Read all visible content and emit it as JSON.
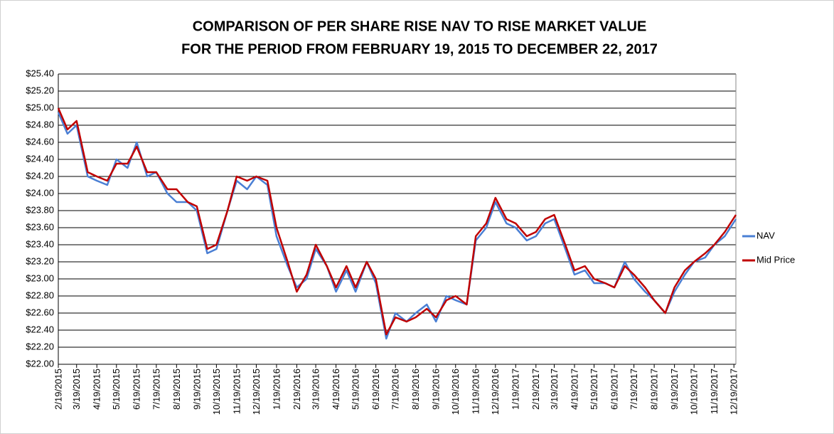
{
  "chart_data": {
    "type": "line",
    "title": [
      "COMPARISON OF PER SHARE RISE NAV TO RISE MARKET VALUE",
      "FOR THE PERIOD FROM FEBRUARY 19, 2015 TO DECEMBER 22, 2017"
    ],
    "x": [
      "2/19/2015",
      "3/5/2015",
      "3/19/2015",
      "4/5/2015",
      "4/19/2015",
      "5/5/2015",
      "5/19/2015",
      "6/5/2015",
      "6/19/2015",
      "7/5/2015",
      "7/19/2015",
      "8/5/2015",
      "8/19/2015",
      "9/5/2015",
      "9/19/2015",
      "10/5/2015",
      "10/19/2015",
      "11/5/2015",
      "11/19/2015",
      "12/5/2015",
      "12/19/2015",
      "1/5/2016",
      "1/19/2016",
      "2/5/2016",
      "2/19/2016",
      "3/5/2016",
      "3/19/2016",
      "4/5/2016",
      "4/19/2016",
      "5/5/2016",
      "5/19/2016",
      "6/5/2016",
      "6/19/2016",
      "7/5/2016",
      "7/19/2016",
      "8/5/2016",
      "8/19/2016",
      "9/5/2016",
      "9/19/2016",
      "10/5/2016",
      "10/19/2016",
      "11/5/2016",
      "11/19/2016",
      "12/5/2016",
      "12/19/2016",
      "1/5/2017",
      "1/19/2017",
      "2/5/2017",
      "2/19/2017",
      "3/5/2017",
      "3/19/2017",
      "4/5/2017",
      "4/19/2017",
      "5/5/2017",
      "5/19/2017",
      "6/5/2017",
      "6/19/2017",
      "7/5/2017",
      "7/19/2017",
      "8/5/2017",
      "8/19/2017",
      "9/5/2017",
      "9/19/2017",
      "10/5/2017",
      "10/19/2017",
      "11/5/2017",
      "11/19/2017",
      "12/5/2017",
      "12/22/2017"
    ],
    "series": [
      {
        "name": "NAV",
        "color": "#4a7fd4",
        "values": [
          24.95,
          24.7,
          24.8,
          24.2,
          24.15,
          24.1,
          24.4,
          24.3,
          24.6,
          24.2,
          24.25,
          24.0,
          23.9,
          23.9,
          23.8,
          23.3,
          23.35,
          23.8,
          24.15,
          24.05,
          24.2,
          24.1,
          23.5,
          23.15,
          22.9,
          23.0,
          23.35,
          23.15,
          22.85,
          23.1,
          22.85,
          23.2,
          22.95,
          22.3,
          22.6,
          22.5,
          22.6,
          22.7,
          22.5,
          22.8,
          22.75,
          22.7,
          23.45,
          23.6,
          23.9,
          23.65,
          23.6,
          23.45,
          23.5,
          23.65,
          23.7,
          23.35,
          23.05,
          23.1,
          22.95,
          22.95,
          22.9,
          23.2,
          23.0,
          22.85,
          22.75,
          22.6,
          22.85,
          23.05,
          23.2,
          23.25,
          23.4,
          23.5,
          23.7
        ]
      },
      {
        "name": "Mid Price",
        "color": "#c00000",
        "values": [
          25.0,
          24.75,
          24.85,
          24.25,
          24.2,
          24.15,
          24.35,
          24.35,
          24.55,
          24.25,
          24.25,
          24.05,
          24.05,
          23.9,
          23.85,
          23.35,
          23.4,
          23.8,
          24.2,
          24.15,
          24.2,
          24.15,
          23.6,
          23.2,
          22.85,
          23.05,
          23.4,
          23.15,
          22.9,
          23.15,
          22.9,
          23.2,
          23.0,
          22.35,
          22.55,
          22.5,
          22.55,
          22.65,
          22.55,
          22.75,
          22.8,
          22.7,
          23.5,
          23.65,
          23.95,
          23.7,
          23.65,
          23.5,
          23.55,
          23.7,
          23.75,
          23.4,
          23.1,
          23.15,
          23.0,
          22.95,
          22.9,
          23.15,
          23.05,
          22.9,
          22.75,
          22.6,
          22.9,
          23.1,
          23.2,
          23.3,
          23.4,
          23.55,
          23.75
        ]
      }
    ],
    "xlim": [
      "2/19/2015",
      "12/22/2017"
    ],
    "xticks": [
      "2/19/2015",
      "3/19/2015",
      "4/19/2015",
      "5/19/2015",
      "6/19/2015",
      "7/19/2015",
      "8/19/2015",
      "9/19/2015",
      "10/19/2015",
      "11/19/2015",
      "12/19/2015",
      "1/19/2016",
      "2/19/2016",
      "3/19/2016",
      "4/19/2016",
      "5/19/2016",
      "6/19/2016",
      "7/19/2016",
      "8/19/2016",
      "9/19/2016",
      "10/19/2016",
      "11/19/2016",
      "12/19/2016",
      "1/19/2017",
      "2/19/2017",
      "3/19/2017",
      "4/19/2017",
      "5/19/2017",
      "6/19/2017",
      "7/19/2017",
      "8/19/2017",
      "9/19/2017",
      "10/19/2017",
      "11/19/2017",
      "12/19/2017"
    ],
    "ylim": [
      22.0,
      25.4
    ],
    "yticks": [
      {
        "value": 22.0,
        "label": "$22.00"
      },
      {
        "value": 22.2,
        "label": "$22.20"
      },
      {
        "value": 22.4,
        "label": "$22.40"
      },
      {
        "value": 22.6,
        "label": "$22.60"
      },
      {
        "value": 22.8,
        "label": "$22.80"
      },
      {
        "value": 23.0,
        "label": "$23.00"
      },
      {
        "value": 23.2,
        "label": "$23.20"
      },
      {
        "value": 23.4,
        "label": "$23.40"
      },
      {
        "value": 23.6,
        "label": "$23.60"
      },
      {
        "value": 23.8,
        "label": "$23.80"
      },
      {
        "value": 24.0,
        "label": "$24.00"
      },
      {
        "value": 24.2,
        "label": "$24.20"
      },
      {
        "value": 24.4,
        "label": "$24.40"
      },
      {
        "value": 24.6,
        "label": "$24.60"
      },
      {
        "value": 24.8,
        "label": "$24.80"
      },
      {
        "value": 25.0,
        "label": "$25.00"
      },
      {
        "value": 25.2,
        "label": "$25.20"
      },
      {
        "value": 25.4,
        "label": "$25.40"
      }
    ],
    "grid": true,
    "legend": "right"
  }
}
